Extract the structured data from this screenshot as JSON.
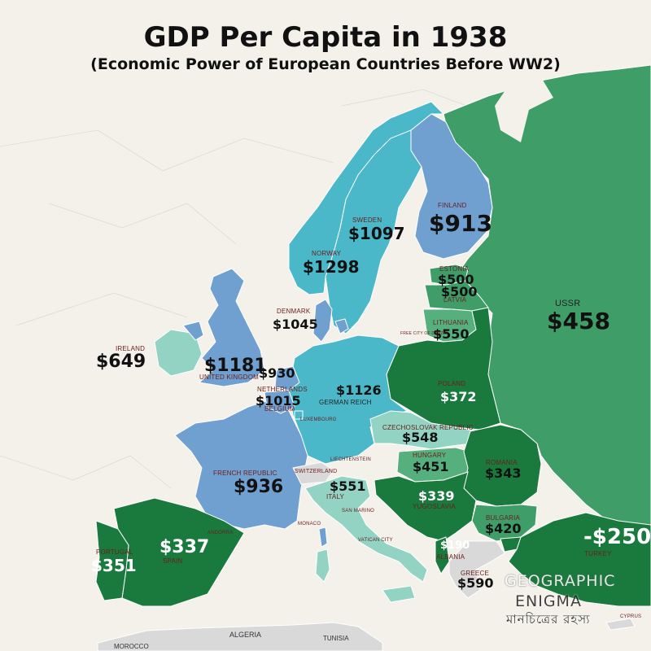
{
  "title": "GDP Per Capita in 1938",
  "subtitle": "(Economic Power of European Countries Before WW2)",
  "colors": {
    "sea": "#f3f1ea",
    "dark_green": "#1a7a3e",
    "mid_green": "#3f9d68",
    "light_green": "#55b07d",
    "pale_teal": "#93d3c3",
    "cyan": "#4ab8c8",
    "steel_blue": "#6fa0d0",
    "gray_land": "#d9d9d9"
  },
  "countries": [
    {
      "id": "ussr",
      "name": "USSR",
      "value": "$458"
    },
    {
      "id": "finland",
      "name": "FINLAND",
      "value": "$913"
    },
    {
      "id": "sweden",
      "name": "SWEDEN",
      "value": "$1097"
    },
    {
      "id": "norway",
      "name": "NORWAY",
      "value": "$1298"
    },
    {
      "id": "estonia",
      "name": "ESTONIA",
      "value": "$500"
    },
    {
      "id": "latvia",
      "name": "LATVIA",
      "value": "$500"
    },
    {
      "id": "lithuania",
      "name": "LITHUANIA",
      "value": "$550"
    },
    {
      "id": "denmark",
      "name": "DENMARK",
      "value": "$1045"
    },
    {
      "id": "ireland",
      "name": "IRELAND",
      "value": "$649"
    },
    {
      "id": "uk",
      "name": "UNITED KINGDOM",
      "value": "$1181"
    },
    {
      "id": "netherlands",
      "name": "NETHERLANDS",
      "value": "$930"
    },
    {
      "id": "belgium",
      "name": "BELGIUM",
      "value": "$1015"
    },
    {
      "id": "germany",
      "name": "GERMAN REICH",
      "value": "$1126"
    },
    {
      "id": "poland",
      "name": "POLAND",
      "value": "$372"
    },
    {
      "id": "czechoslovakia",
      "name": "CZECHOSLOVAK REPUBLIC",
      "value": "$548"
    },
    {
      "id": "hungary",
      "name": "HUNGARY",
      "value": "$451"
    },
    {
      "id": "romania",
      "name": "ROMANIA",
      "value": "$343"
    },
    {
      "id": "france",
      "name": "FRENCH REPUBLIC",
      "value": "$936"
    },
    {
      "id": "italy",
      "name": "ITALY",
      "value": "$551"
    },
    {
      "id": "yugoslavia",
      "name": "YUGOSLAVIA",
      "value": "$339"
    },
    {
      "id": "bulgaria",
      "name": "BULGARIA",
      "value": "$420"
    },
    {
      "id": "turkey",
      "name": "TURKEY",
      "value": "-$250"
    },
    {
      "id": "spain",
      "name": "SPAIN",
      "value": "$337"
    },
    {
      "id": "portugal",
      "name": "PORTUGAL",
      "value": "$351"
    },
    {
      "id": "albania",
      "name": "ALBANIA",
      "value": "$190"
    },
    {
      "id": "greece",
      "name": "GREECE",
      "value": "$590"
    }
  ],
  "small_labels": {
    "danzig": "FREE CITY OF DANZIG",
    "luxembourg": "LUXEMBOURG",
    "liechtenstein": "LIECHTENSTEIN",
    "switzerland": "SWITZERLAND",
    "san_marino": "SAN MARINO",
    "vatican": "VATICAN CITY",
    "monaco": "MONACO",
    "andorra": "ANDORRA",
    "cyprus": "CYPRUS",
    "algeria": "ALGERIA",
    "tunisia": "TUNISIA",
    "morocco": "MOROCCO"
  },
  "watermark": {
    "line1": "GEOGRAPHIC",
    "line2": "ENIGMA",
    "line3": "মানচিত্রের রহস্য"
  }
}
